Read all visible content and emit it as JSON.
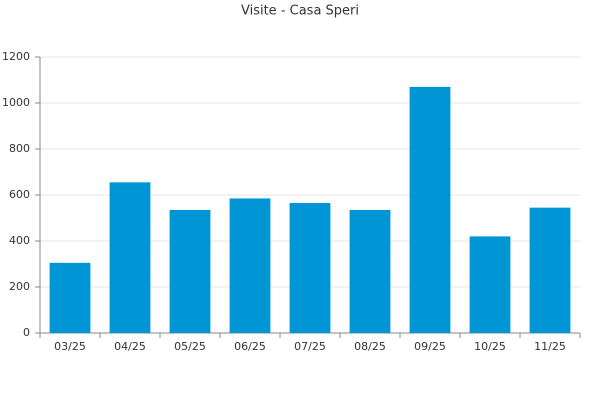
{
  "chart_data": {
    "type": "bar",
    "title": "Visite - Casa Speri",
    "categories": [
      "03/25",
      "04/25",
      "05/25",
      "06/25",
      "07/25",
      "08/25",
      "09/25",
      "10/25",
      "11/25"
    ],
    "values": [
      305,
      655,
      535,
      585,
      565,
      535,
      1070,
      420,
      545
    ],
    "color": "#0096d6",
    "ylim": [
      0,
      1200
    ],
    "yticks": [
      0,
      200,
      400,
      600,
      800,
      1000,
      1200
    ],
    "grid": true
  }
}
